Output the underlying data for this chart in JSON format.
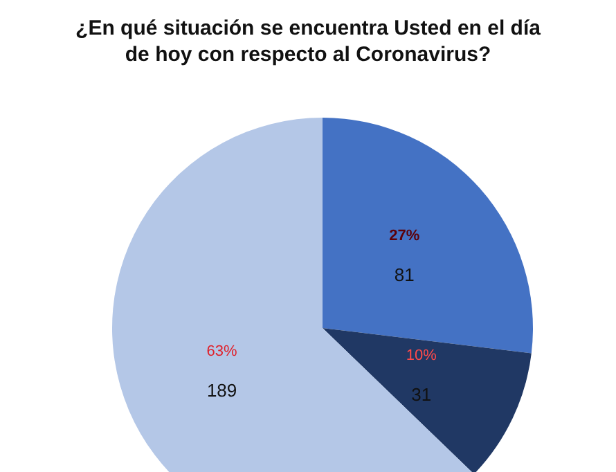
{
  "chart_data": {
    "type": "pie",
    "title": "¿En qué situación se encuentra Usted en el día\nde hoy con respecto al Coronavirus?",
    "categories": [
      null,
      null,
      null
    ],
    "values": [
      81,
      31,
      189
    ],
    "colors": [
      "#4472c4",
      "#203864",
      "#b4c7e7"
    ],
    "data_labels": true,
    "annotations": [
      "27%",
      "10%",
      "63%"
    ]
  }
}
